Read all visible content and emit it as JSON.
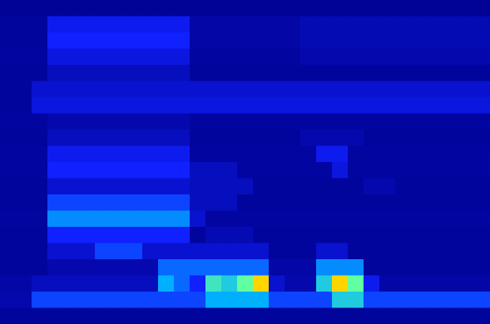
{
  "chart_data": {
    "type": "heatmap",
    "tick_labels": false,
    "zlim": [
      0,
      1
    ],
    "cells": [
      [
        0.03,
        0.03,
        0.03,
        0.03,
        0.03,
        0.03,
        0.03,
        0.03,
        0.03,
        0.03,
        0.03,
        0.03,
        0.03,
        0.03,
        0.03,
        0.03,
        0.03,
        0.03,
        0.03,
        0.03,
        0.03,
        0.03,
        0.03,
        0.03,
        0.03,
        0.03,
        0.03,
        0.03,
        0.03,
        0.03,
        0.03
      ],
      [
        0.05,
        0.05,
        0.05,
        0.3,
        0.3,
        0.3,
        0.3,
        0.3,
        0.3,
        0.3,
        0.3,
        0.3,
        0.08,
        0.08,
        0.08,
        0.08,
        0.08,
        0.08,
        0.08,
        0.12,
        0.12,
        0.12,
        0.12,
        0.12,
        0.12,
        0.12,
        0.12,
        0.12,
        0.12,
        0.12,
        0.12
      ],
      [
        0.05,
        0.05,
        0.05,
        0.35,
        0.35,
        0.35,
        0.35,
        0.35,
        0.35,
        0.35,
        0.35,
        0.35,
        0.08,
        0.08,
        0.08,
        0.08,
        0.08,
        0.08,
        0.08,
        0.12,
        0.12,
        0.12,
        0.12,
        0.12,
        0.12,
        0.12,
        0.12,
        0.12,
        0.12,
        0.12,
        0.12
      ],
      [
        0.06,
        0.06,
        0.06,
        0.25,
        0.25,
        0.25,
        0.25,
        0.25,
        0.25,
        0.25,
        0.25,
        0.25,
        0.06,
        0.06,
        0.06,
        0.06,
        0.06,
        0.06,
        0.06,
        0.1,
        0.1,
        0.1,
        0.1,
        0.1,
        0.1,
        0.1,
        0.1,
        0.1,
        0.1,
        0.1,
        0.1
      ],
      [
        0.05,
        0.05,
        0.05,
        0.15,
        0.15,
        0.15,
        0.15,
        0.15,
        0.15,
        0.15,
        0.15,
        0.15,
        0.05,
        0.05,
        0.05,
        0.05,
        0.05,
        0.05,
        0.05,
        0.05,
        0.05,
        0.05,
        0.05,
        0.05,
        0.05,
        0.05,
        0.05,
        0.05,
        0.05,
        0.05,
        0.05
      ],
      [
        0.05,
        0.05,
        0.2,
        0.2,
        0.2,
        0.2,
        0.2,
        0.2,
        0.2,
        0.2,
        0.2,
        0.2,
        0.2,
        0.2,
        0.2,
        0.2,
        0.2,
        0.2,
        0.2,
        0.2,
        0.2,
        0.2,
        0.2,
        0.2,
        0.2,
        0.2,
        0.2,
        0.2,
        0.2,
        0.2,
        0.2
      ],
      [
        0.05,
        0.05,
        0.25,
        0.25,
        0.25,
        0.25,
        0.25,
        0.25,
        0.25,
        0.25,
        0.25,
        0.25,
        0.25,
        0.25,
        0.25,
        0.25,
        0.25,
        0.25,
        0.25,
        0.25,
        0.25,
        0.25,
        0.25,
        0.25,
        0.25,
        0.25,
        0.25,
        0.25,
        0.25,
        0.25,
        0.25
      ],
      [
        0.06,
        0.06,
        0.06,
        0.1,
        0.1,
        0.1,
        0.1,
        0.1,
        0.1,
        0.1,
        0.1,
        0.1,
        0.06,
        0.06,
        0.06,
        0.06,
        0.06,
        0.06,
        0.06,
        0.06,
        0.06,
        0.06,
        0.06,
        0.06,
        0.06,
        0.06,
        0.06,
        0.06,
        0.06,
        0.06,
        0.06
      ],
      [
        0.05,
        0.05,
        0.05,
        0.15,
        0.15,
        0.15,
        0.15,
        0.15,
        0.15,
        0.15,
        0.15,
        0.15,
        0.05,
        0.05,
        0.05,
        0.05,
        0.05,
        0.05,
        0.05,
        0.1,
        0.1,
        0.1,
        0.1,
        0.05,
        0.05,
        0.05,
        0.05,
        0.05,
        0.05,
        0.05,
        0.05
      ],
      [
        0.06,
        0.06,
        0.06,
        0.3,
        0.3,
        0.3,
        0.3,
        0.3,
        0.3,
        0.3,
        0.3,
        0.3,
        0.06,
        0.06,
        0.06,
        0.06,
        0.06,
        0.06,
        0.06,
        0.06,
        0.3,
        0.3,
        0.06,
        0.06,
        0.06,
        0.06,
        0.06,
        0.06,
        0.06,
        0.06,
        0.06
      ],
      [
        0.06,
        0.06,
        0.06,
        0.35,
        0.35,
        0.35,
        0.35,
        0.35,
        0.35,
        0.35,
        0.35,
        0.35,
        0.15,
        0.15,
        0.15,
        0.06,
        0.06,
        0.06,
        0.06,
        0.06,
        0.06,
        0.25,
        0.06,
        0.06,
        0.06,
        0.06,
        0.06,
        0.06,
        0.06,
        0.06,
        0.06
      ],
      [
        0.05,
        0.05,
        0.05,
        0.2,
        0.2,
        0.2,
        0.2,
        0.2,
        0.2,
        0.2,
        0.2,
        0.2,
        0.15,
        0.15,
        0.15,
        0.15,
        0.05,
        0.05,
        0.05,
        0.05,
        0.05,
        0.05,
        0.05,
        0.1,
        0.1,
        0.05,
        0.05,
        0.05,
        0.05,
        0.05,
        0.05
      ],
      [
        0.05,
        0.05,
        0.05,
        0.4,
        0.4,
        0.4,
        0.4,
        0.4,
        0.4,
        0.4,
        0.4,
        0.4,
        0.15,
        0.15,
        0.15,
        0.05,
        0.05,
        0.05,
        0.05,
        0.05,
        0.05,
        0.05,
        0.05,
        0.05,
        0.05,
        0.05,
        0.05,
        0.05,
        0.05,
        0.05,
        0.05
      ],
      [
        0.06,
        0.06,
        0.06,
        0.5,
        0.5,
        0.5,
        0.5,
        0.5,
        0.5,
        0.5,
        0.5,
        0.5,
        0.2,
        0.06,
        0.06,
        0.06,
        0.06,
        0.06,
        0.06,
        0.06,
        0.06,
        0.06,
        0.06,
        0.06,
        0.06,
        0.06,
        0.06,
        0.06,
        0.06,
        0.06,
        0.06
      ],
      [
        0.05,
        0.05,
        0.05,
        0.35,
        0.35,
        0.35,
        0.35,
        0.35,
        0.35,
        0.35,
        0.35,
        0.35,
        0.05,
        0.12,
        0.12,
        0.12,
        0.05,
        0.05,
        0.05,
        0.05,
        0.05,
        0.05,
        0.05,
        0.05,
        0.05,
        0.05,
        0.05,
        0.05,
        0.05,
        0.05,
        0.05
      ],
      [
        0.05,
        0.05,
        0.05,
        0.2,
        0.2,
        0.2,
        0.4,
        0.4,
        0.4,
        0.2,
        0.2,
        0.2,
        0.2,
        0.2,
        0.2,
        0.2,
        0.2,
        0.05,
        0.05,
        0.05,
        0.2,
        0.2,
        0.05,
        0.05,
        0.05,
        0.05,
        0.05,
        0.05,
        0.05,
        0.05,
        0.05
      ],
      [
        0.05,
        0.05,
        0.05,
        0.1,
        0.1,
        0.1,
        0.1,
        0.1,
        0.1,
        0.1,
        0.45,
        0.45,
        0.45,
        0.45,
        0.45,
        0.45,
        0.45,
        0.08,
        0.08,
        0.08,
        0.5,
        0.5,
        0.5,
        0.05,
        0.05,
        0.05,
        0.05,
        0.05,
        0.05,
        0.05,
        0.05
      ],
      [
        0.08,
        0.08,
        0.15,
        0.15,
        0.15,
        0.15,
        0.15,
        0.15,
        0.15,
        0.15,
        0.55,
        0.45,
        0.35,
        0.65,
        0.6,
        0.7,
        0.9,
        0.2,
        0.1,
        0.1,
        0.6,
        0.9,
        0.7,
        0.3,
        0.08,
        0.08,
        0.08,
        0.08,
        0.08,
        0.08,
        0.08
      ],
      [
        0.1,
        0.1,
        0.4,
        0.4,
        0.4,
        0.4,
        0.4,
        0.4,
        0.4,
        0.4,
        0.4,
        0.4,
        0.4,
        0.55,
        0.55,
        0.55,
        0.55,
        0.4,
        0.4,
        0.4,
        0.4,
        0.6,
        0.6,
        0.4,
        0.4,
        0.4,
        0.4,
        0.4,
        0.4,
        0.4,
        0.4
      ],
      [
        0.05,
        0.05,
        0.05,
        0.05,
        0.05,
        0.05,
        0.05,
        0.05,
        0.05,
        0.05,
        0.05,
        0.05,
        0.05,
        0.05,
        0.05,
        0.05,
        0.05,
        0.05,
        0.05,
        0.05,
        0.05,
        0.05,
        0.05,
        0.05,
        0.05,
        0.05,
        0.05,
        0.05,
        0.05,
        0.05,
        0.05
      ]
    ]
  }
}
